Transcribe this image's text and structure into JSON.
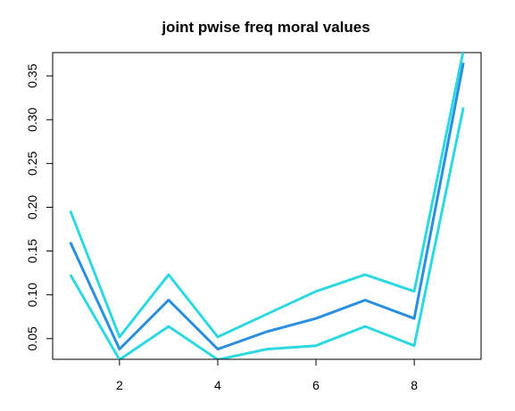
{
  "chart_data": {
    "type": "line",
    "title": "joint pwise freq moral values",
    "xlabel": "",
    "ylabel": "",
    "x": [
      1,
      2,
      3,
      4,
      5,
      6,
      7,
      8,
      9
    ],
    "xlim": [
      0.64,
      9.36
    ],
    "ylim": [
      0.0264,
      0.3766
    ],
    "x_ticks": [
      2,
      4,
      6,
      8
    ],
    "x_tick_labels": [
      "2",
      "4",
      "6",
      "8"
    ],
    "y_ticks": [
      0.05,
      0.1,
      0.15,
      0.2,
      0.25,
      0.3,
      0.35
    ],
    "y_tick_labels": [
      "0.05",
      "0.10",
      "0.15",
      "0.20",
      "0.25",
      "0.30",
      "0.35"
    ],
    "grid": false,
    "legend": "none",
    "series": [
      {
        "values": [
          0.196,
          0.052,
          0.123,
          0.052,
          0.078,
          0.104,
          0.123,
          0.104,
          0.379
        ],
        "color": "#2ed8e0"
      },
      {
        "values": [
          0.16,
          0.038,
          0.094,
          0.038,
          0.058,
          0.073,
          0.094,
          0.073,
          0.365
        ],
        "color": "#2b8fe0"
      },
      {
        "values": [
          0.123,
          0.026,
          0.064,
          0.026,
          0.038,
          0.042,
          0.064,
          0.042,
          0.314
        ],
        "color": "#2ed8e0"
      }
    ]
  }
}
